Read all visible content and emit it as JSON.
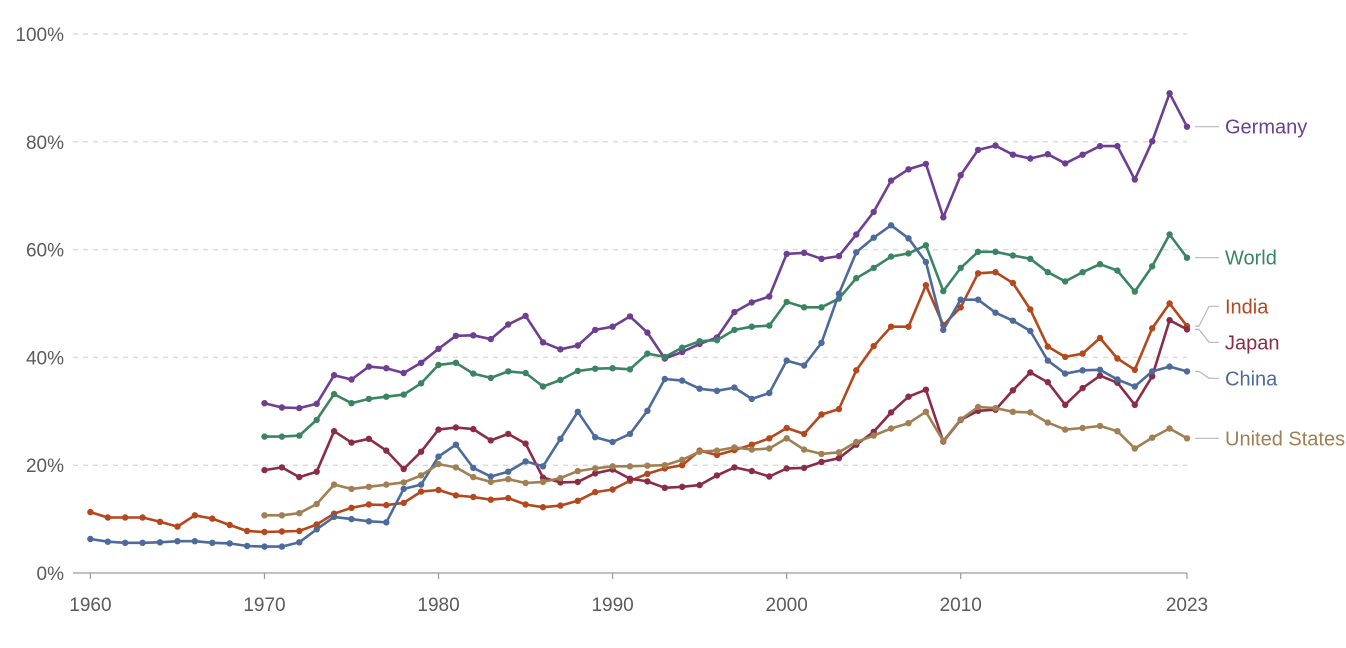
{
  "chart_data": {
    "type": "line",
    "title": "",
    "xlabel": "",
    "ylabel": "",
    "xlim": [
      1959,
      2023
    ],
    "ylim": [
      0,
      100
    ],
    "grid": true,
    "legend": "inline-right",
    "x_ticks": [
      {
        "value": 1960,
        "label": "1960"
      },
      {
        "value": 1970,
        "label": "1970"
      },
      {
        "value": 1980,
        "label": "1980"
      },
      {
        "value": 1990,
        "label": "1990"
      },
      {
        "value": 2000,
        "label": "2000"
      },
      {
        "value": 2010,
        "label": "2010"
      },
      {
        "value": 2023,
        "label": "2023"
      }
    ],
    "y_ticks": [
      {
        "value": 0,
        "label": "0%"
      },
      {
        "value": 20,
        "label": "20%"
      },
      {
        "value": 40,
        "label": "40%"
      },
      {
        "value": 60,
        "label": "60%"
      },
      {
        "value": 80,
        "label": "80%"
      },
      {
        "value": 100,
        "label": "100%"
      }
    ],
    "series": [
      {
        "name": "Germany",
        "color": "#6d3e91",
        "start": 1970,
        "values": [
          31.5,
          30.7,
          30.6,
          31.4,
          36.7,
          35.9,
          38.3,
          38.0,
          37.1,
          39.0,
          41.6,
          44.0,
          44.1,
          43.4,
          46.1,
          47.7,
          42.8,
          41.5,
          42.2,
          45.1,
          45.7,
          47.6,
          44.6,
          39.8,
          41.0,
          42.5,
          43.7,
          48.4,
          50.2,
          51.3,
          59.2,
          59.4,
          58.3,
          58.8,
          62.8,
          67.0,
          72.8,
          74.9,
          75.9,
          66.0,
          73.8,
          78.5,
          79.3,
          77.6,
          76.9,
          77.7,
          76.0,
          77.6,
          79.2,
          79.2,
          73.0,
          80.1,
          89.0,
          82.8
        ]
      },
      {
        "name": "World",
        "color": "#3a8462",
        "start": 1970,
        "values": [
          25.3,
          25.3,
          25.5,
          28.4,
          33.2,
          31.5,
          32.3,
          32.7,
          33.1,
          35.2,
          38.6,
          39.0,
          37.0,
          36.2,
          37.4,
          37.1,
          34.6,
          35.8,
          37.5,
          37.9,
          38.0,
          37.8,
          40.7,
          40.1,
          41.8,
          43.0,
          43.2,
          45.1,
          45.7,
          45.9,
          50.3,
          49.3,
          49.3,
          50.9,
          54.7,
          56.6,
          58.7,
          59.3,
          60.8,
          52.3,
          56.6,
          59.6,
          59.6,
          58.9,
          58.3,
          55.8,
          54.1,
          55.8,
          57.3,
          56.1,
          52.2,
          56.9,
          62.8,
          58.5
        ]
      },
      {
        "name": "India",
        "color": "#b5471d",
        "start": 1960,
        "values": [
          11.3,
          10.3,
          10.3,
          10.3,
          9.5,
          8.6,
          10.7,
          10.1,
          8.9,
          7.8,
          7.6,
          7.7,
          7.8,
          9.0,
          11.0,
          12.1,
          12.7,
          12.6,
          13.0,
          15.1,
          15.4,
          14.4,
          14.1,
          13.6,
          13.9,
          12.7,
          12.2,
          12.5,
          13.4,
          15.0,
          15.5,
          17.1,
          18.4,
          19.4,
          20.0,
          22.7,
          21.9,
          22.8,
          23.8,
          25.0,
          26.9,
          25.8,
          29.4,
          30.4,
          37.6,
          42.1,
          45.7,
          45.7,
          53.4,
          46.0,
          49.3,
          55.6,
          55.8,
          53.8,
          48.9,
          42.0,
          40.1,
          40.7,
          43.6,
          39.8,
          37.7,
          45.4,
          50.0,
          45.8
        ]
      },
      {
        "name": "Japan",
        "color": "#8a2c48",
        "start": 1970,
        "values": [
          19.1,
          19.6,
          17.8,
          18.8,
          26.3,
          24.2,
          24.9,
          22.7,
          19.3,
          22.5,
          26.6,
          27.0,
          26.7,
          24.6,
          25.8,
          24.0,
          17.7,
          16.8,
          16.9,
          18.5,
          19.2,
          17.5,
          17.0,
          15.8,
          16.0,
          16.3,
          18.1,
          19.6,
          18.9,
          17.9,
          19.4,
          19.5,
          20.6,
          21.3,
          23.8,
          26.2,
          29.8,
          32.7,
          34.0,
          24.4,
          28.4,
          30.1,
          30.3,
          33.9,
          37.2,
          35.4,
          31.2,
          34.3,
          36.6,
          35.3,
          31.2,
          36.5,
          46.9,
          45.2
        ]
      },
      {
        "name": "China",
        "color": "#4c6a9c",
        "start": 1960,
        "values": [
          6.3,
          5.8,
          5.6,
          5.6,
          5.7,
          5.9,
          5.9,
          5.6,
          5.5,
          5.0,
          4.9,
          4.9,
          5.7,
          8.1,
          10.4,
          10.0,
          9.6,
          9.4,
          15.6,
          16.4,
          21.6,
          23.8,
          19.5,
          17.9,
          18.8,
          20.7,
          19.8,
          24.9,
          29.9,
          25.2,
          24.3,
          25.8,
          30.1,
          36.0,
          35.7,
          34.2,
          33.8,
          34.4,
          32.3,
          33.4,
          39.4,
          38.5,
          42.7,
          51.8,
          59.5,
          62.2,
          64.5,
          62.1,
          57.7,
          45.1,
          50.7,
          50.7,
          48.3,
          46.8,
          44.9,
          39.4,
          37.0,
          37.6,
          37.7,
          35.9,
          34.6,
          37.4,
          38.3,
          37.4
        ]
      },
      {
        "name": "United States",
        "color": "#a07f52",
        "start": 1970,
        "values": [
          10.7,
          10.7,
          11.1,
          12.8,
          16.4,
          15.6,
          16.0,
          16.4,
          16.8,
          18.1,
          20.2,
          19.6,
          17.8,
          16.9,
          17.4,
          16.7,
          16.9,
          17.6,
          18.9,
          19.4,
          19.8,
          19.8,
          19.9,
          20.0,
          21.0,
          22.5,
          22.7,
          23.3,
          22.9,
          23.1,
          25.0,
          22.9,
          22.1,
          22.4,
          24.3,
          25.5,
          26.8,
          27.8,
          29.9,
          24.5,
          28.5,
          30.8,
          30.6,
          29.9,
          29.8,
          27.9,
          26.6,
          26.9,
          27.3,
          26.3,
          23.1,
          25.1,
          26.8,
          25.0
        ]
      }
    ]
  }
}
